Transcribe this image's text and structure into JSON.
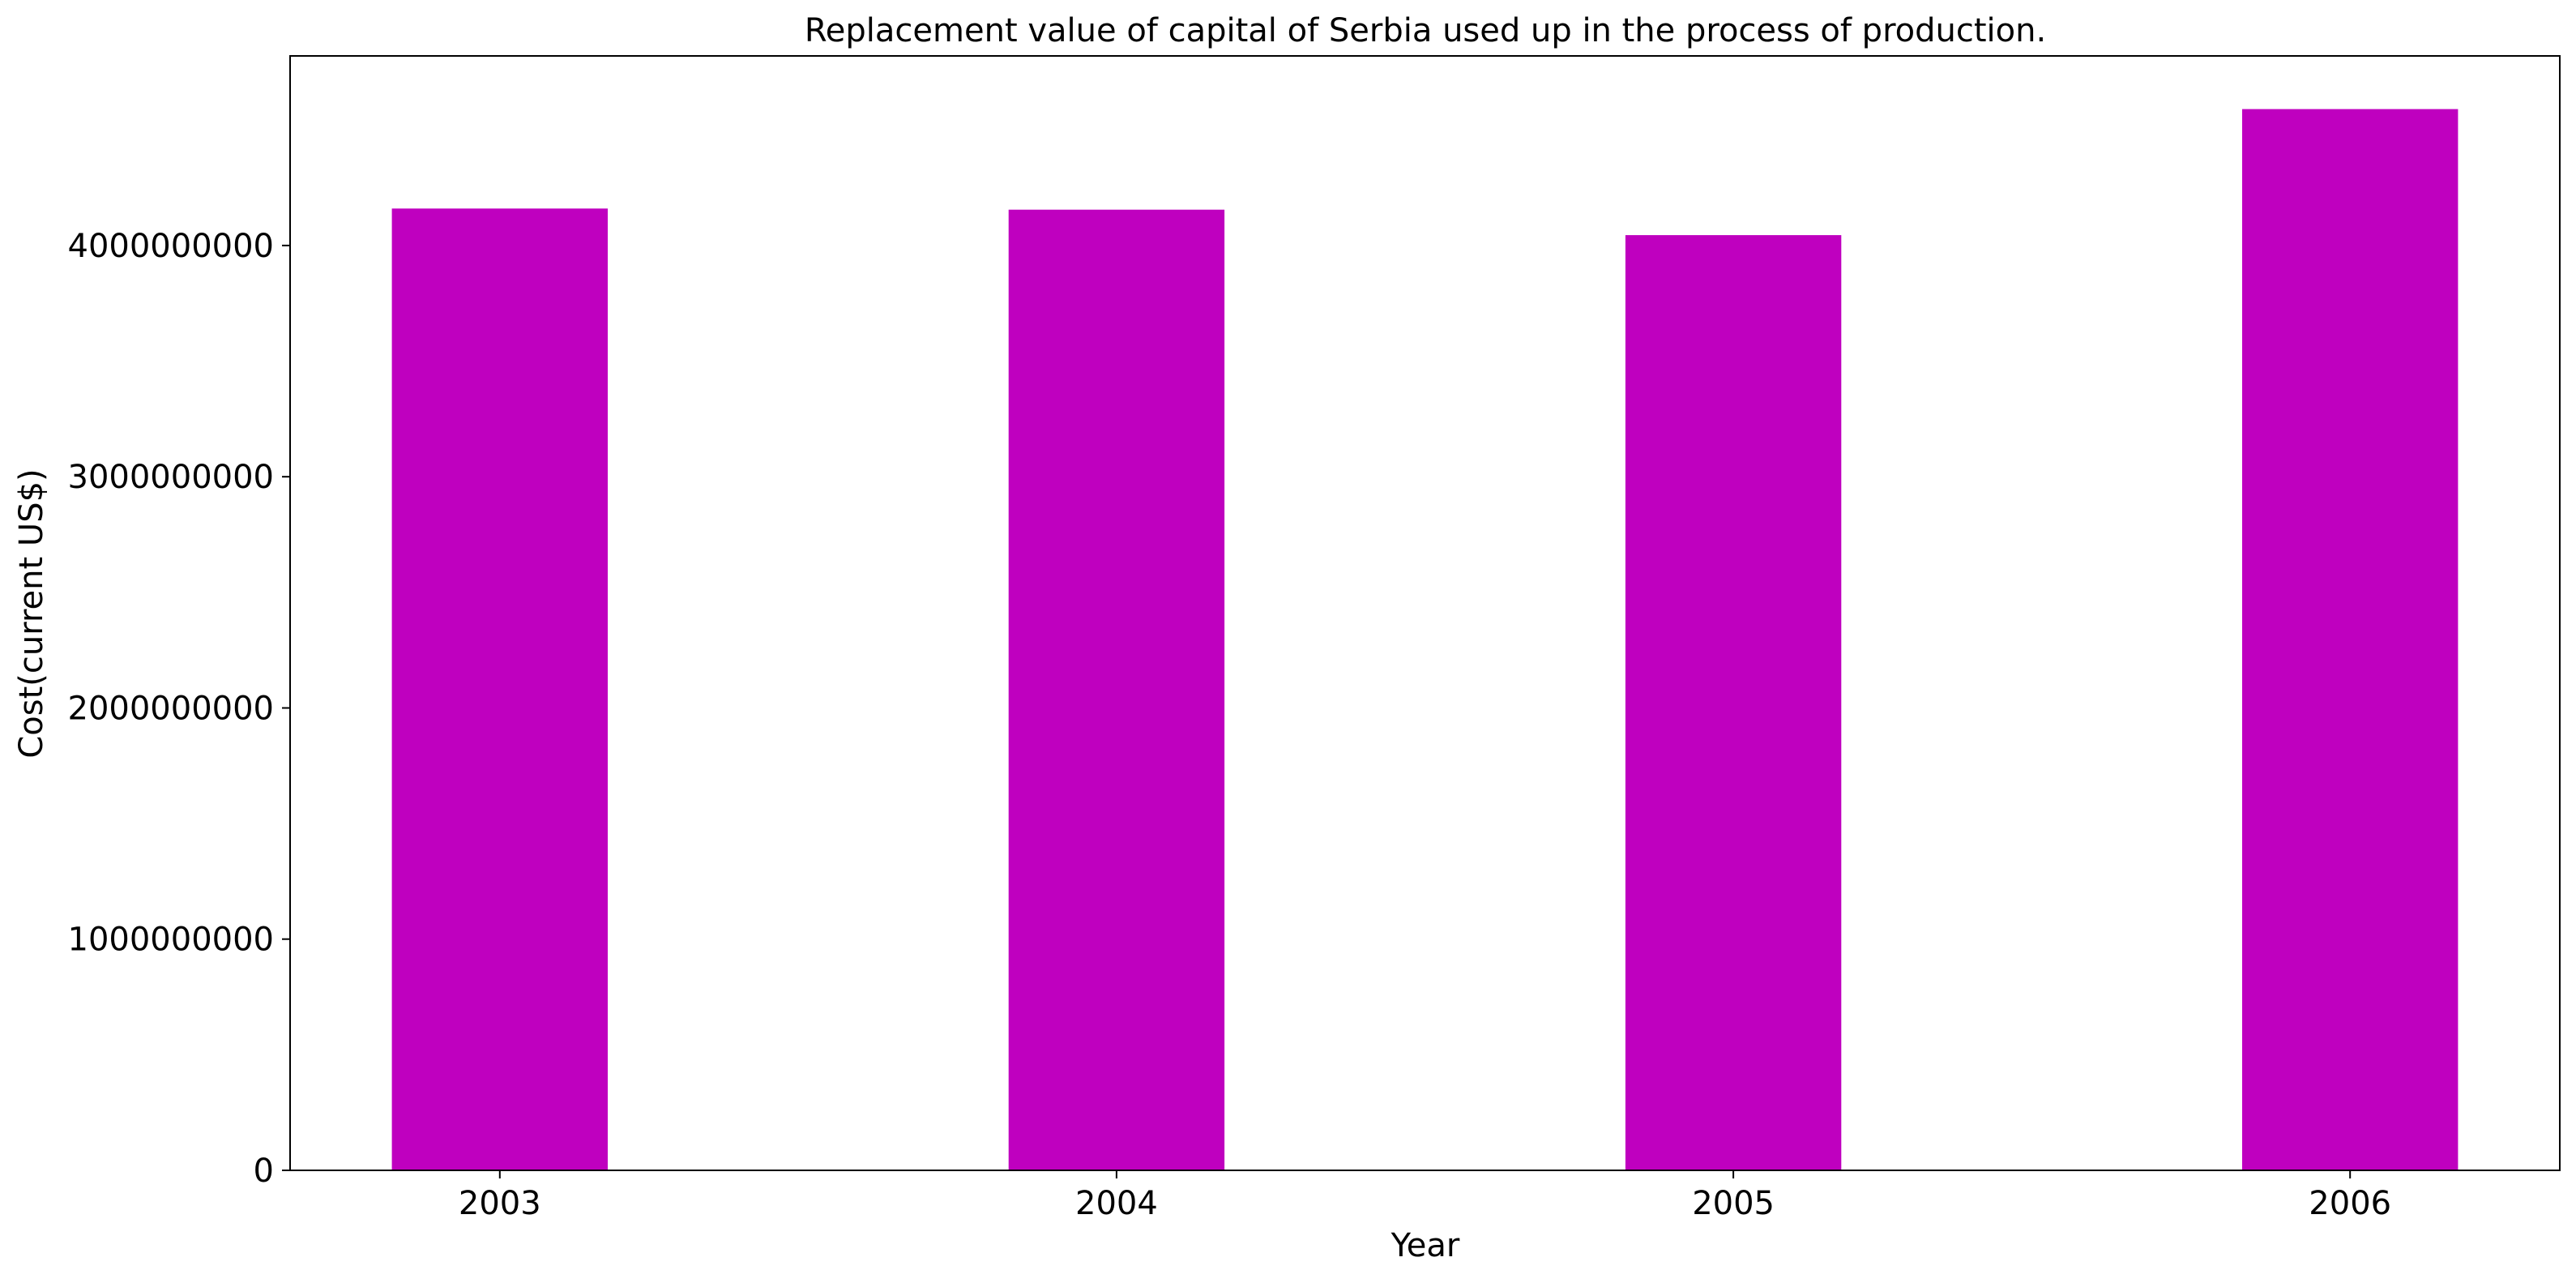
{
  "chart_data": {
    "type": "bar",
    "title": "Replacement value of capital of Serbia used up in the process of production.",
    "xlabel": "Year",
    "ylabel": "Cost(current US$)",
    "categories": [
      "2003",
      "2004",
      "2005",
      "2006"
    ],
    "values": [
      4160000000,
      4155000000,
      4045000000,
      4590000000
    ],
    "ylim": [
      0,
      4820000000
    ],
    "yticks": [
      0,
      1000000000,
      2000000000,
      3000000000,
      4000000000
    ],
    "ytick_labels": [
      "0",
      "1000000000",
      "2000000000",
      "3000000000",
      "4000000000"
    ],
    "bar_color": "#bf00bf",
    "grid": false,
    "legend": "none"
  }
}
